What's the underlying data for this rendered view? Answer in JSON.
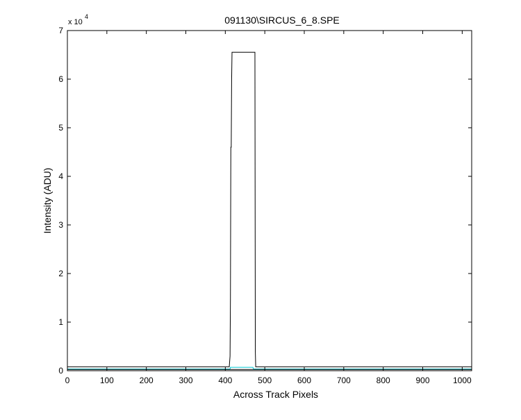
{
  "chart_data": {
    "type": "line",
    "title": "091130\\SIRCUS_6_8.SPE",
    "xlabel": "Across Track Pixels",
    "ylabel": "Intensity (ADU)",
    "y_exponent_label": {
      "base": "x 10",
      "exponent": "4"
    },
    "xlim": [
      0,
      1024
    ],
    "ylim": [
      0,
      70000
    ],
    "x_ticks": [
      0,
      100,
      200,
      300,
      400,
      500,
      600,
      700,
      800,
      900,
      1000
    ],
    "y_ticks": [
      0,
      10000,
      20000,
      30000,
      40000,
      50000,
      60000,
      70000
    ],
    "y_tick_labels": [
      "0",
      "1",
      "2",
      "3",
      "4",
      "5",
      "6",
      "7"
    ],
    "grid": false,
    "series": [
      {
        "color": "#000000",
        "x": [
          0,
          410,
          412,
          413,
          414,
          415,
          416,
          417,
          418,
          419,
          420,
          421,
          422,
          423,
          424,
          425,
          426,
          475,
          476,
          477,
          1024
        ],
        "y": [
          800,
          800,
          3000,
          15000,
          46000,
          46000,
          60000,
          65535,
          65535,
          65535,
          65535,
          65535,
          65535,
          65535,
          65535,
          65535,
          65535,
          65535,
          4000,
          800,
          800
        ]
      },
      {
        "color": "#00c8d2",
        "x": [
          0,
          412,
          413,
          470,
          471,
          1024
        ],
        "y": [
          350,
          350,
          700,
          700,
          350,
          350
        ]
      },
      {
        "color": "#000000",
        "x": [
          0,
          1024
        ],
        "y": [
          250,
          250
        ]
      }
    ]
  }
}
